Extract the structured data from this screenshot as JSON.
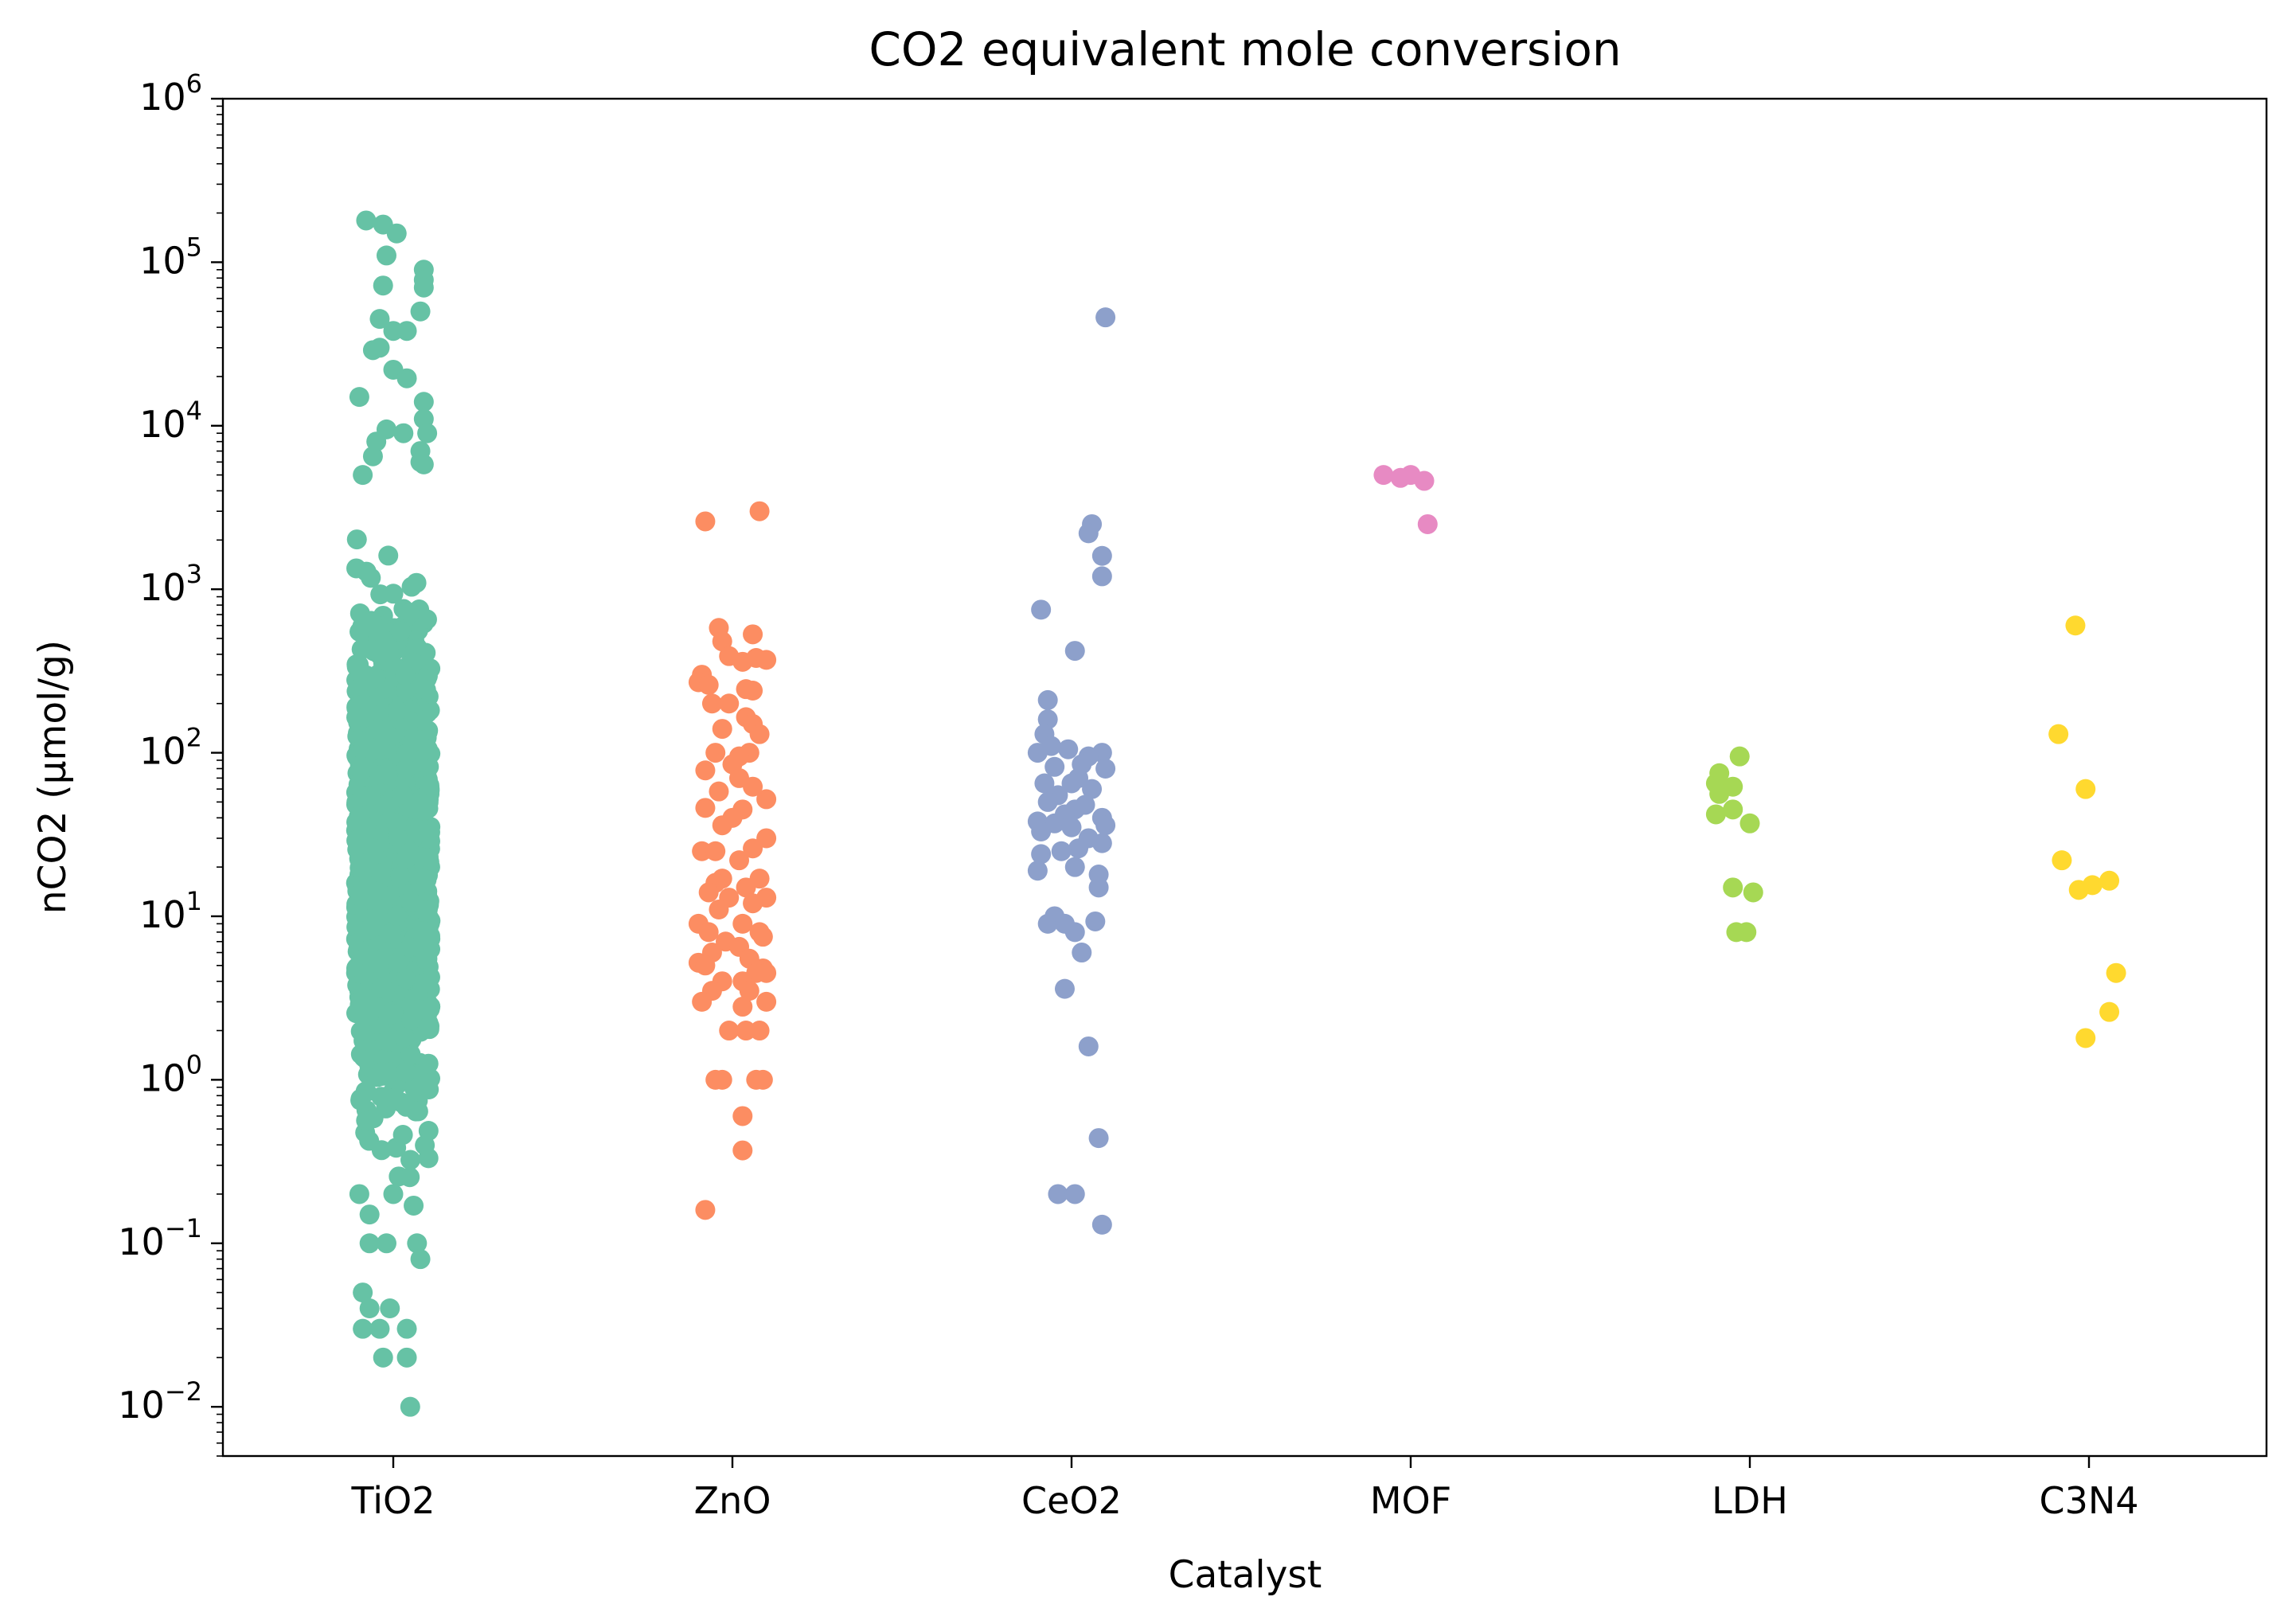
{
  "chart_data": {
    "type": "scatter",
    "style": "strip plot with horizontal jitter",
    "title": "CO2 equivalent mole conversion",
    "xlabel": "Catalyst",
    "ylabel": "nCO2 (μmol/g)",
    "yscale": "log",
    "ylim": [
      0.005,
      1000000
    ],
    "grid": false,
    "legend": "none",
    "categories": [
      "TiO2",
      "ZnO",
      "CeO2",
      "MOF",
      "LDH",
      "C3N4"
    ],
    "y_ticks": [
      {
        "base": "10",
        "exp": "−2",
        "value": 0.01
      },
      {
        "base": "10",
        "exp": "−1",
        "value": 0.1
      },
      {
        "base": "10",
        "exp": "0",
        "value": 1
      },
      {
        "base": "10",
        "exp": "1",
        "value": 10
      },
      {
        "base": "10",
        "exp": "2",
        "value": 100
      },
      {
        "base": "10",
        "exp": "3",
        "value": 1000
      },
      {
        "base": "10",
        "exp": "4",
        "value": 10000
      },
      {
        "base": "10",
        "exp": "5",
        "value": 100000
      },
      {
        "base": "10",
        "exp": "6",
        "value": 1000000
      }
    ],
    "series": [
      {
        "category": "TiO2",
        "color": "#66c2a5",
        "dense_band": [
          0.15,
          3000
        ],
        "points": [
          {
            "x": -0.08,
            "y": 180000
          },
          {
            "x": -0.03,
            "y": 170000
          },
          {
            "x": 0.01,
            "y": 150000
          },
          {
            "x": -0.02,
            "y": 110000
          },
          {
            "x": 0.09,
            "y": 90000
          },
          {
            "x": 0.09,
            "y": 78000
          },
          {
            "x": -0.03,
            "y": 72000
          },
          {
            "x": 0.09,
            "y": 70000
          },
          {
            "x": 0.08,
            "y": 50000
          },
          {
            "x": -0.04,
            "y": 45000
          },
          {
            "x": 0.04,
            "y": 38000
          },
          {
            "x": 0.0,
            "y": 38000
          },
          {
            "x": -0.04,
            "y": 30000
          },
          {
            "x": -0.06,
            "y": 29000
          },
          {
            "x": 0.0,
            "y": 22000
          },
          {
            "x": 0.04,
            "y": 19500
          },
          {
            "x": -0.1,
            "y": 15000
          },
          {
            "x": 0.09,
            "y": 14000
          },
          {
            "x": 0.09,
            "y": 11000
          },
          {
            "x": -0.02,
            "y": 9500
          },
          {
            "x": 0.03,
            "y": 9000
          },
          {
            "x": 0.1,
            "y": 9000
          },
          {
            "x": -0.05,
            "y": 8000
          },
          {
            "x": 0.08,
            "y": 7000
          },
          {
            "x": -0.06,
            "y": 6500
          },
          {
            "x": 0.08,
            "y": 6000
          },
          {
            "x": -0.09,
            "y": 5000
          },
          {
            "x": 0.09,
            "y": 5800
          },
          {
            "x": -0.1,
            "y": 0.2
          },
          {
            "x": 0.0,
            "y": 0.2
          },
          {
            "x": -0.07,
            "y": 0.15
          },
          {
            "x": 0.06,
            "y": 0.17
          },
          {
            "x": -0.07,
            "y": 0.1
          },
          {
            "x": -0.02,
            "y": 0.1
          },
          {
            "x": 0.07,
            "y": 0.1
          },
          {
            "x": 0.08,
            "y": 0.08
          },
          {
            "x": -0.09,
            "y": 0.05
          },
          {
            "x": -0.07,
            "y": 0.04
          },
          {
            "x": -0.01,
            "y": 0.04
          },
          {
            "x": -0.09,
            "y": 0.03
          },
          {
            "x": -0.04,
            "y": 0.03
          },
          {
            "x": 0.04,
            "y": 0.03
          },
          {
            "x": -0.03,
            "y": 0.02
          },
          {
            "x": 0.04,
            "y": 0.02
          },
          {
            "x": 0.05,
            "y": 0.01
          }
        ]
      },
      {
        "category": "ZnO",
        "color": "#fc8d62",
        "points": [
          {
            "x": 0.08,
            "y": 3000
          },
          {
            "x": -0.08,
            "y": 2600
          },
          {
            "x": -0.04,
            "y": 580
          },
          {
            "x": 0.06,
            "y": 530
          },
          {
            "x": -0.03,
            "y": 480
          },
          {
            "x": -0.01,
            "y": 390
          },
          {
            "x": 0.07,
            "y": 380
          },
          {
            "x": 0.1,
            "y": 370
          },
          {
            "x": 0.03,
            "y": 360
          },
          {
            "x": -0.09,
            "y": 300
          },
          {
            "x": -0.1,
            "y": 270
          },
          {
            "x": -0.07,
            "y": 260
          },
          {
            "x": 0.04,
            "y": 245
          },
          {
            "x": 0.06,
            "y": 240
          },
          {
            "x": -0.06,
            "y": 200
          },
          {
            "x": -0.01,
            "y": 200
          },
          {
            "x": 0.04,
            "y": 165
          },
          {
            "x": 0.06,
            "y": 150
          },
          {
            "x": -0.03,
            "y": 140
          },
          {
            "x": 0.08,
            "y": 130
          },
          {
            "x": 0.05,
            "y": 100
          },
          {
            "x": 0.02,
            "y": 95
          },
          {
            "x": -0.05,
            "y": 100
          },
          {
            "x": 0.0,
            "y": 85
          },
          {
            "x": -0.08,
            "y": 78
          },
          {
            "x": 0.02,
            "y": 70
          },
          {
            "x": 0.06,
            "y": 62
          },
          {
            "x": -0.04,
            "y": 58
          },
          {
            "x": 0.1,
            "y": 52
          },
          {
            "x": -0.08,
            "y": 46
          },
          {
            "x": 0.03,
            "y": 45
          },
          {
            "x": 0.0,
            "y": 40
          },
          {
            "x": -0.03,
            "y": 36
          },
          {
            "x": 0.1,
            "y": 30
          },
          {
            "x": -0.09,
            "y": 25
          },
          {
            "x": 0.06,
            "y": 26
          },
          {
            "x": -0.05,
            "y": 25
          },
          {
            "x": 0.02,
            "y": 22
          },
          {
            "x": -0.03,
            "y": 17
          },
          {
            "x": 0.08,
            "y": 17
          },
          {
            "x": -0.05,
            "y": 16
          },
          {
            "x": 0.04,
            "y": 15
          },
          {
            "x": -0.07,
            "y": 14
          },
          {
            "x": 0.1,
            "y": 13
          },
          {
            "x": -0.01,
            "y": 13
          },
          {
            "x": 0.06,
            "y": 12
          },
          {
            "x": -0.04,
            "y": 11
          },
          {
            "x": -0.1,
            "y": 9
          },
          {
            "x": 0.03,
            "y": 9
          },
          {
            "x": 0.08,
            "y": 8
          },
          {
            "x": -0.07,
            "y": 8
          },
          {
            "x": 0.09,
            "y": 7.5
          },
          {
            "x": -0.02,
            "y": 7
          },
          {
            "x": 0.02,
            "y": 6.5
          },
          {
            "x": -0.06,
            "y": 6
          },
          {
            "x": -0.1,
            "y": 5.2
          },
          {
            "x": 0.05,
            "y": 5.5
          },
          {
            "x": -0.08,
            "y": 5
          },
          {
            "x": 0.09,
            "y": 4.8
          },
          {
            "x": 0.07,
            "y": 4.5
          },
          {
            "x": 0.1,
            "y": 4.5
          },
          {
            "x": -0.03,
            "y": 4
          },
          {
            "x": 0.03,
            "y": 4
          },
          {
            "x": -0.06,
            "y": 3.5
          },
          {
            "x": 0.05,
            "y": 3.5
          },
          {
            "x": -0.09,
            "y": 3
          },
          {
            "x": 0.1,
            "y": 3
          },
          {
            "x": 0.03,
            "y": 2.8
          },
          {
            "x": -0.01,
            "y": 2
          },
          {
            "x": 0.04,
            "y": 2
          },
          {
            "x": 0.08,
            "y": 2
          },
          {
            "x": -0.05,
            "y": 1
          },
          {
            "x": -0.03,
            "y": 1
          },
          {
            "x": 0.07,
            "y": 1
          },
          {
            "x": 0.09,
            "y": 1
          },
          {
            "x": 0.03,
            "y": 0.6
          },
          {
            "x": 0.03,
            "y": 0.37
          },
          {
            "x": -0.08,
            "y": 0.16
          }
        ]
      },
      {
        "category": "CeO2",
        "color": "#8da0cb",
        "points": [
          {
            "x": 0.1,
            "y": 46000
          },
          {
            "x": 0.06,
            "y": 2500
          },
          {
            "x": 0.05,
            "y": 2200
          },
          {
            "x": 0.09,
            "y": 1600
          },
          {
            "x": 0.09,
            "y": 1200
          },
          {
            "x": -0.09,
            "y": 750
          },
          {
            "x": 0.01,
            "y": 420
          },
          {
            "x": -0.07,
            "y": 210
          },
          {
            "x": -0.07,
            "y": 160
          },
          {
            "x": -0.08,
            "y": 130
          },
          {
            "x": -0.06,
            "y": 110
          },
          {
            "x": -0.1,
            "y": 100
          },
          {
            "x": -0.01,
            "y": 105
          },
          {
            "x": 0.09,
            "y": 100
          },
          {
            "x": 0.05,
            "y": 95
          },
          {
            "x": 0.03,
            "y": 85
          },
          {
            "x": -0.05,
            "y": 82
          },
          {
            "x": 0.1,
            "y": 80
          },
          {
            "x": 0.02,
            "y": 70
          },
          {
            "x": -0.08,
            "y": 65
          },
          {
            "x": 0.0,
            "y": 65
          },
          {
            "x": 0.06,
            "y": 60
          },
          {
            "x": -0.04,
            "y": 55
          },
          {
            "x": -0.07,
            "y": 50
          },
          {
            "x": 0.04,
            "y": 48
          },
          {
            "x": 0.01,
            "y": 45
          },
          {
            "x": -0.02,
            "y": 42
          },
          {
            "x": 0.09,
            "y": 40
          },
          {
            "x": -0.1,
            "y": 38
          },
          {
            "x": -0.05,
            "y": 37
          },
          {
            "x": 0.1,
            "y": 36
          },
          {
            "x": 0.0,
            "y": 35
          },
          {
            "x": -0.09,
            "y": 33
          },
          {
            "x": 0.05,
            "y": 30
          },
          {
            "x": 0.09,
            "y": 28
          },
          {
            "x": 0.02,
            "y": 26
          },
          {
            "x": -0.03,
            "y": 25
          },
          {
            "x": -0.09,
            "y": 24
          },
          {
            "x": 0.01,
            "y": 20
          },
          {
            "x": -0.1,
            "y": 19
          },
          {
            "x": 0.08,
            "y": 18
          },
          {
            "x": 0.08,
            "y": 15
          },
          {
            "x": -0.05,
            "y": 10
          },
          {
            "x": -0.07,
            "y": 9
          },
          {
            "x": -0.02,
            "y": 9
          },
          {
            "x": 0.07,
            "y": 9.3
          },
          {
            "x": 0.01,
            "y": 8
          },
          {
            "x": 0.03,
            "y": 6
          },
          {
            "x": -0.02,
            "y": 3.6
          },
          {
            "x": 0.05,
            "y": 1.6
          },
          {
            "x": 0.08,
            "y": 0.44
          },
          {
            "x": -0.04,
            "y": 0.2
          },
          {
            "x": 0.01,
            "y": 0.2
          },
          {
            "x": 0.09,
            "y": 0.13
          }
        ]
      },
      {
        "category": "MOF",
        "color": "#e78ac3",
        "points": [
          {
            "x": -0.08,
            "y": 5000
          },
          {
            "x": -0.03,
            "y": 4800
          },
          {
            "x": 0.0,
            "y": 5000
          },
          {
            "x": 0.04,
            "y": 4600
          },
          {
            "x": 0.05,
            "y": 2500
          }
        ]
      },
      {
        "category": "LDH",
        "color": "#a6d854",
        "points": [
          {
            "x": -0.03,
            "y": 95
          },
          {
            "x": -0.09,
            "y": 75
          },
          {
            "x": -0.1,
            "y": 65
          },
          {
            "x": -0.05,
            "y": 62
          },
          {
            "x": -0.09,
            "y": 56
          },
          {
            "x": -0.1,
            "y": 42
          },
          {
            "x": -0.05,
            "y": 45
          },
          {
            "x": 0.0,
            "y": 37
          },
          {
            "x": -0.05,
            "y": 15
          },
          {
            "x": 0.01,
            "y": 14
          },
          {
            "x": -0.04,
            "y": 8
          },
          {
            "x": -0.01,
            "y": 8
          }
        ]
      },
      {
        "category": "C3N4",
        "color": "#ffd92f",
        "points": [
          {
            "x": -0.04,
            "y": 600
          },
          {
            "x": -0.09,
            "y": 130
          },
          {
            "x": -0.01,
            "y": 60
          },
          {
            "x": -0.08,
            "y": 22
          },
          {
            "x": 0.06,
            "y": 16.5
          },
          {
            "x": 0.01,
            "y": 15.5
          },
          {
            "x": -0.03,
            "y": 14.5
          },
          {
            "x": 0.08,
            "y": 4.5
          },
          {
            "x": 0.06,
            "y": 2.6
          },
          {
            "x": -0.01,
            "y": 1.8
          }
        ]
      }
    ]
  }
}
